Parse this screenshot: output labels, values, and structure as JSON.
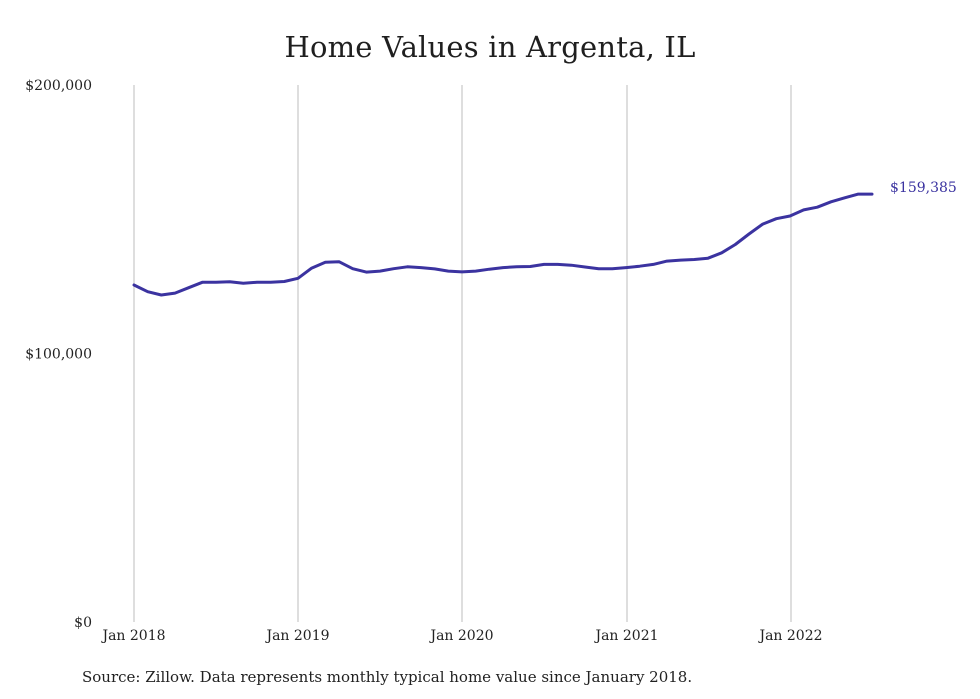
{
  "chart_data": {
    "type": "line",
    "title": "Home Values in Argenta, IL",
    "source": "Source: Zillow. Data represents monthly typical home value since January 2018.",
    "xlabel": "",
    "ylabel": "",
    "x_ticks": [
      "Jan 2018",
      "Jan 2019",
      "Jan 2020",
      "Jan 2021",
      "Jan 2022"
    ],
    "y_ticks": [
      "$0",
      "$100,000",
      "$200,000"
    ],
    "ylim": [
      0,
      200000
    ],
    "xlim": [
      "2018-01",
      "2022-07"
    ],
    "grid": "vertical",
    "legend": "none",
    "line_color": "#3b33a0",
    "end_label": "$159,385",
    "series": [
      {
        "x": [
          "2018-01",
          "2018-02",
          "2018-03",
          "2018-04",
          "2018-05",
          "2018-06",
          "2018-07",
          "2018-08",
          "2018-09",
          "2018-10",
          "2018-11",
          "2018-12",
          "2019-01",
          "2019-02",
          "2019-03",
          "2019-04",
          "2019-05",
          "2019-06",
          "2019-07",
          "2019-08",
          "2019-09",
          "2019-10",
          "2019-11",
          "2019-12",
          "2020-01",
          "2020-02",
          "2020-03",
          "2020-04",
          "2020-05",
          "2020-06",
          "2020-07",
          "2020-08",
          "2020-09",
          "2020-10",
          "2020-11",
          "2020-12",
          "2021-01",
          "2021-02",
          "2021-03",
          "2021-04",
          "2021-05",
          "2021-06",
          "2021-07",
          "2021-08",
          "2021-09",
          "2021-10",
          "2021-11",
          "2021-12",
          "2022-01",
          "2022-02",
          "2022-03",
          "2022-04",
          "2022-05",
          "2022-06",
          "2022-07"
        ],
        "values": [
          125500,
          123000,
          121800,
          122500,
          124500,
          126500,
          126500,
          126700,
          126200,
          126500,
          126500,
          126800,
          128000,
          131800,
          134000,
          134200,
          131600,
          130300,
          130700,
          131600,
          132300,
          132000,
          131500,
          130700,
          130400,
          130700,
          131400,
          132000,
          132300,
          132400,
          133200,
          133200,
          132900,
          132200,
          131600,
          131600,
          132000,
          132500,
          133200,
          134400,
          134800,
          135000,
          135500,
          137500,
          140600,
          144500,
          148200,
          150200,
          151200,
          153500,
          154500,
          156500,
          158000,
          159385,
          159385
        ]
      }
    ]
  }
}
